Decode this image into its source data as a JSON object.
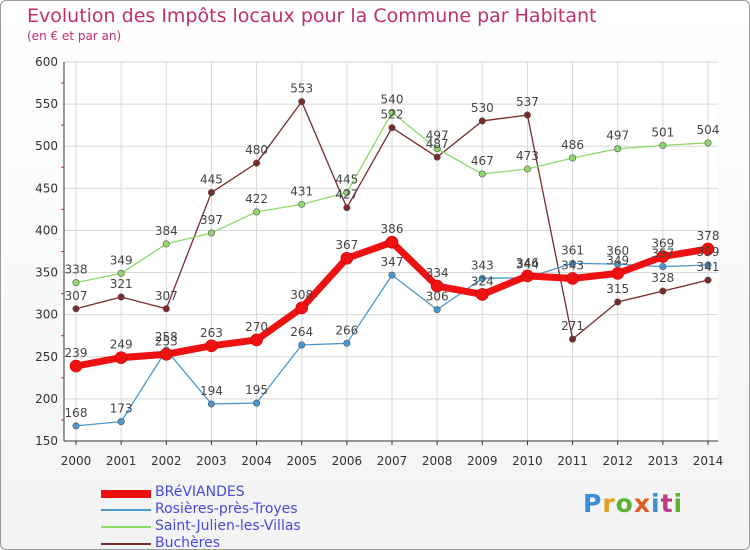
{
  "colors": {
    "title": "#c0306a",
    "axis": "#333333",
    "grid": "#d8d8d8",
    "legend_text": "#4a4ad8"
  },
  "chart_data": {
    "type": "line",
    "title": "Evolution des Impôts locaux pour la Commune par Habitant",
    "subtitle": "(en € et par an)",
    "x": [
      "2000",
      "2001",
      "2002",
      "2003",
      "2004",
      "2005",
      "2006",
      "2007",
      "2008",
      "2009",
      "2010",
      "2011",
      "2012",
      "2013",
      "2014"
    ],
    "ylim": [
      150,
      600
    ],
    "yticks": [
      150,
      200,
      250,
      300,
      350,
      400,
      450,
      500,
      550,
      600
    ],
    "grid": true,
    "series": [
      {
        "name": "BRéVIANDES",
        "color": "#ee1111",
        "width": 7,
        "values": [
          239,
          249,
          253,
          263,
          270,
          308,
          367,
          386,
          334,
          324,
          346,
          343,
          349,
          369,
          378
        ],
        "labels": [
          "239",
          "249",
          "253",
          "263",
          "270",
          "308",
          "367",
          "386",
          "334",
          "324",
          "346",
          "343",
          "349",
          "369",
          "378"
        ]
      },
      {
        "name": "Rosières-près-Troyes",
        "color": "#4a98d0",
        "width": 1.3,
        "values": [
          168,
          173,
          258,
          194,
          195,
          264,
          266,
          347,
          306,
          343,
          344,
          361,
          360,
          357,
          359
        ],
        "labels": [
          "168",
          "173",
          "258",
          "194",
          "195",
          "264",
          "266",
          "347",
          "306",
          "343",
          "344",
          "361",
          "360",
          "357",
          "359"
        ]
      },
      {
        "name": "Saint-Julien-les-Villas",
        "color": "#8fd86a",
        "width": 1.3,
        "values": [
          338,
          349,
          384,
          397,
          422,
          431,
          445,
          540,
          497,
          467,
          473,
          486,
          497,
          501,
          504
        ],
        "labels": [
          "338",
          "349",
          "384",
          "397",
          "422",
          "431",
          "445",
          "540",
          "497",
          "467",
          "473",
          "486",
          "497",
          "501",
          "504"
        ]
      },
      {
        "name": "Buchères",
        "color": "#7a2a2a",
        "width": 1.3,
        "values": [
          307,
          321,
          307,
          445,
          480,
          553,
          427,
          522,
          487,
          530,
          537,
          271,
          315,
          328,
          341
        ],
        "labels": [
          "307",
          "321",
          "307",
          "445",
          "480",
          "553",
          "427",
          "522",
          "487",
          "530",
          "537",
          "271",
          "315",
          "328",
          "341"
        ]
      }
    ],
    "legend_position": "bottom-left"
  },
  "logo": {
    "letters": [
      "P",
      "r",
      "o",
      "x",
      "i",
      "t",
      "i"
    ]
  }
}
